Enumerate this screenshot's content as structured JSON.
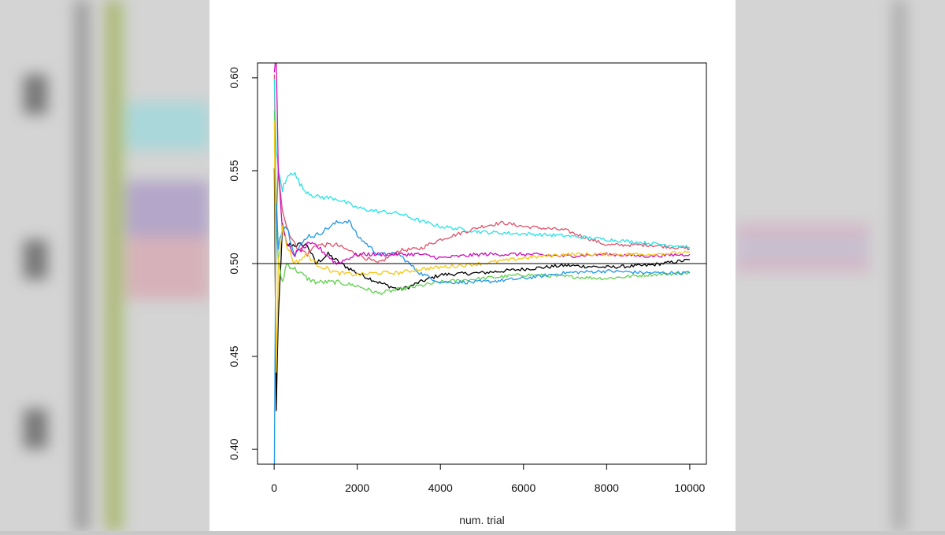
{
  "chart_data": {
    "type": "line",
    "xlabel": "num. trial",
    "ylabel": "",
    "xlim": [
      -400,
      10400
    ],
    "ylim": [
      0.392,
      0.608
    ],
    "x_ticks": [
      0,
      2000,
      4000,
      6000,
      8000,
      10000
    ],
    "x_tick_labels": [
      "0",
      "2000",
      "4000",
      "6000",
      "8000",
      "10000"
    ],
    "y_ticks": [
      0.4,
      0.45,
      0.5,
      0.55,
      0.6
    ],
    "y_tick_labels": [
      "0.40",
      "0.45",
      "0.50",
      "0.55",
      "0.60"
    ],
    "reference_line": 0.5,
    "grid": false,
    "legend": "none",
    "series": [
      {
        "color": "#000000",
        "x": [
          5,
          50,
          100,
          200,
          300,
          500,
          800,
          1000,
          1300,
          1600,
          2000,
          2500,
          3000,
          3200,
          3500,
          4000,
          5000,
          6000,
          7000,
          8000,
          9000,
          10000
        ],
        "y": [
          0.55,
          0.42,
          0.47,
          0.52,
          0.51,
          0.51,
          0.51,
          0.5,
          0.505,
          0.5,
          0.495,
          0.49,
          0.486,
          0.487,
          0.49,
          0.494,
          0.495,
          0.497,
          0.499,
          0.498,
          0.499,
          0.502
        ]
      },
      {
        "color": "#df536b",
        "x": [
          5,
          50,
          100,
          200,
          300,
          500,
          800,
          1000,
          1500,
          2000,
          2500,
          3000,
          3500,
          4000,
          5000,
          5500,
          6000,
          7000,
          8000,
          9000,
          10000
        ],
        "y": [
          0.6,
          0.52,
          0.55,
          0.53,
          0.52,
          0.51,
          0.505,
          0.51,
          0.51,
          0.505,
          0.5,
          0.507,
          0.508,
          0.513,
          0.52,
          0.522,
          0.52,
          0.518,
          0.51,
          0.51,
          0.508
        ]
      },
      {
        "color": "#61d04f",
        "x": [
          5,
          50,
          100,
          200,
          300,
          500,
          800,
          1000,
          1500,
          2000,
          2500,
          3000,
          3500,
          4000,
          5000,
          6000,
          7000,
          8000,
          9000,
          10000
        ],
        "y": [
          0.58,
          0.53,
          0.5,
          0.49,
          0.5,
          0.497,
          0.492,
          0.49,
          0.49,
          0.488,
          0.484,
          0.486,
          0.488,
          0.49,
          0.492,
          0.494,
          0.493,
          0.492,
          0.494,
          0.495
        ]
      },
      {
        "color": "#2297e6",
        "x": [
          5,
          30,
          60,
          100,
          200,
          300,
          500,
          800,
          1000,
          1500,
          1800,
          2000,
          2500,
          3000,
          3500,
          4000,
          5000,
          6000,
          7000,
          8000,
          9000,
          10000
        ],
        "y": [
          0.39,
          0.48,
          0.53,
          0.51,
          0.52,
          0.52,
          0.505,
          0.515,
          0.515,
          0.522,
          0.523,
          0.515,
          0.505,
          0.505,
          0.495,
          0.49,
          0.49,
          0.492,
          0.495,
          0.496,
          0.495,
          0.495
        ]
      },
      {
        "color": "#28e2e5",
        "x": [
          5,
          50,
          100,
          200,
          300,
          400,
          500,
          700,
          1000,
          1500,
          2000,
          2500,
          3000,
          3500,
          4000,
          5000,
          6000,
          7000,
          8000,
          9000,
          10000
        ],
        "y": [
          0.6,
          0.56,
          0.55,
          0.54,
          0.545,
          0.55,
          0.548,
          0.54,
          0.536,
          0.535,
          0.53,
          0.528,
          0.527,
          0.523,
          0.52,
          0.517,
          0.516,
          0.515,
          0.513,
          0.511,
          0.509
        ]
      },
      {
        "color": "#cd0bbc",
        "x": [
          5,
          50,
          100,
          200,
          300,
          500,
          800,
          1000,
          1500,
          2000,
          2500,
          3000,
          3500,
          4000,
          5000,
          6000,
          7000,
          8000,
          9000,
          10000
        ],
        "y": [
          0.6,
          0.61,
          0.55,
          0.52,
          0.51,
          0.505,
          0.51,
          0.51,
          0.5,
          0.505,
          0.505,
          0.505,
          0.505,
          0.503,
          0.505,
          0.505,
          0.504,
          0.505,
          0.504,
          0.505
        ]
      },
      {
        "color": "#f5c710",
        "x": [
          5,
          50,
          80,
          100,
          200,
          300,
          500,
          800,
          1000,
          1500,
          2000,
          2500,
          3000,
          3500,
          4000,
          5000,
          6000,
          7000,
          8000,
          9000,
          10000
        ],
        "y": [
          0.58,
          0.44,
          0.47,
          0.5,
          0.52,
          0.51,
          0.5,
          0.505,
          0.5,
          0.495,
          0.494,
          0.495,
          0.495,
          0.497,
          0.498,
          0.5,
          0.503,
          0.505,
          0.505,
          0.505,
          0.506
        ]
      }
    ]
  }
}
